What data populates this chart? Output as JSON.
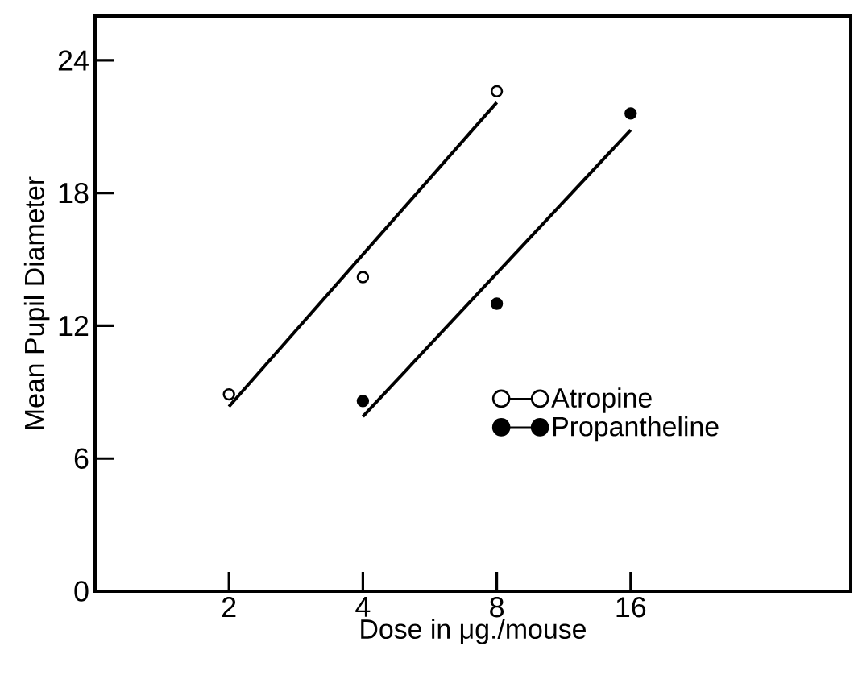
{
  "chart_data": {
    "type": "scatter",
    "xlabel": "Dose in μg./mouse",
    "ylabel": "Mean Pupil Diameter",
    "log": "x",
    "xlim": [
      1,
      50
    ],
    "ylim": [
      0,
      26
    ],
    "xticks": [
      2,
      4,
      8,
      16
    ],
    "yticks": [
      0,
      6,
      12,
      18,
      24
    ],
    "legend": "right",
    "series": [
      {
        "name": "Atropine",
        "marker": "circle",
        "color": "#ffffff",
        "x": [
          2,
          4,
          8
        ],
        "values": [
          8.9,
          14.2,
          22.6
        ]
      },
      {
        "name": "Propantheline",
        "marker": "circle",
        "color": "#000000",
        "x": [
          4,
          8,
          16
        ],
        "values": [
          8.6,
          13.0,
          21.6
        ]
      },
      {
        "type": "line",
        "marker": "none",
        "line_style": "solid",
        "color": "#000000",
        "x": [
          2,
          8
        ],
        "values": [
          8.35,
          22.1
        ]
      },
      {
        "type": "line",
        "marker": "none",
        "line_style": "solid",
        "color": "#000000",
        "x": [
          4,
          16
        ],
        "values": [
          7.9,
          20.85
        ]
      }
    ]
  }
}
